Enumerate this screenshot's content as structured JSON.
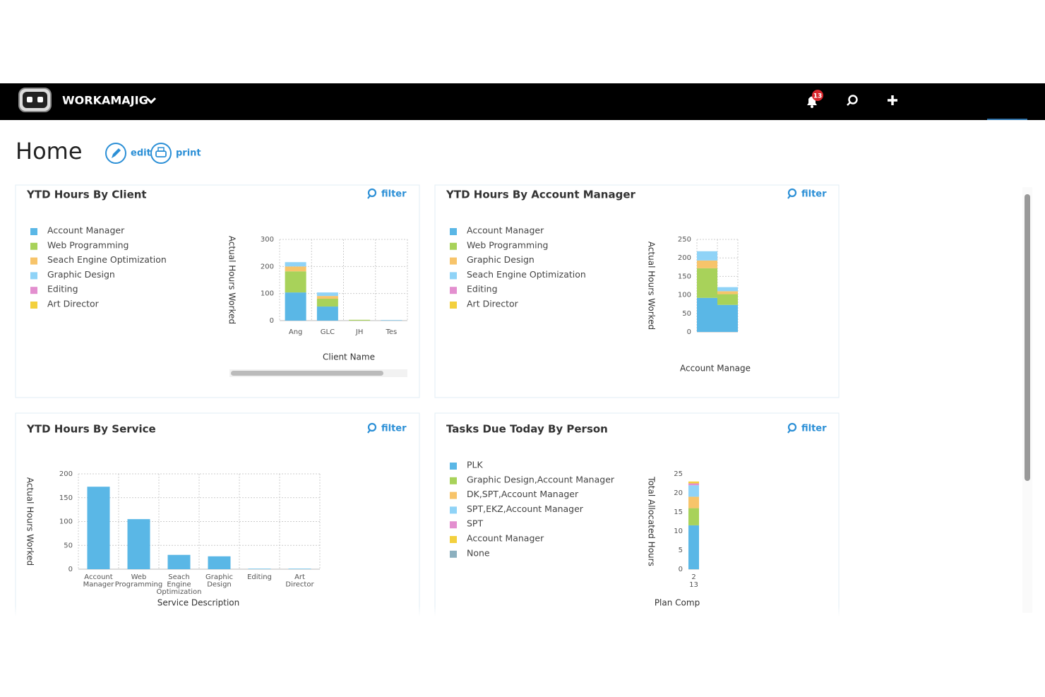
{
  "nav": {
    "brand": "WORKAMAJIG",
    "notifications": 13
  },
  "page": {
    "title": "Home",
    "actions": [
      "edit",
      "print"
    ]
  },
  "chart_data": [
    {
      "type": "bar",
      "stacked": true,
      "grid": true,
      "title": "YTD Hours By Client",
      "filter": "filter",
      "xlabel": "Client Name",
      "ylabel": "Actual Hours Worked",
      "categories": [
        "Ang",
        "GLC",
        "JH",
        "Tes"
      ],
      "series": [
        {
          "name": "Account Manager",
          "color": "#5ab7e6",
          "values": [
            104,
            52,
            0,
            1
          ]
        },
        {
          "name": "Web Programming",
          "color": "#a8d25a",
          "values": [
            78,
            29,
            3,
            0
          ]
        },
        {
          "name": "Seach Engine Optimization",
          "color": "#f7c46a",
          "values": [
            18,
            10,
            0,
            0
          ]
        },
        {
          "name": "Graphic Design",
          "color": "#8fd3f7",
          "values": [
            16,
            13,
            0,
            1
          ]
        },
        {
          "name": "Editing",
          "color": "#e38fcf",
          "values": [
            0,
            0,
            0,
            0
          ]
        },
        {
          "name": "Art Director",
          "color": "#f3d03e",
          "values": [
            0,
            0,
            0,
            0
          ]
        }
      ],
      "ylim": [
        0,
        300
      ],
      "yticks": [
        0,
        100,
        200,
        300
      ]
    },
    {
      "type": "bar",
      "stacked": true,
      "grid": true,
      "title": "YTD Hours By Account Manager",
      "filter": "filter",
      "xlabel": "Account Manage",
      "ylabel": "Actual Hours Worked",
      "categories": [
        null,
        null
      ],
      "series": [
        {
          "name": "Account Manager",
          "color": "#5ab7e6",
          "values": [
            92,
            73
          ]
        },
        {
          "name": "Web Programming",
          "color": "#a8d25a",
          "values": [
            80,
            29
          ]
        },
        {
          "name": "Graphic Design",
          "color": "#f7c46a",
          "values": [
            21,
            8
          ]
        },
        {
          "name": "Seach Engine Optimization",
          "color": "#8fd3f7",
          "values": [
            25,
            11
          ]
        },
        {
          "name": "Editing",
          "color": "#e38fcf",
          "values": [
            0,
            0
          ]
        },
        {
          "name": "Art Director",
          "color": "#f3d03e",
          "values": [
            0,
            0
          ]
        }
      ],
      "ylim": [
        0,
        250
      ],
      "yticks": [
        0,
        50,
        100,
        150,
        200,
        250
      ]
    },
    {
      "type": "bar",
      "grid": true,
      "title": "YTD Hours By Service",
      "filter": "filter",
      "xlabel": "Service Description",
      "ylabel": "Actual Hours Worked",
      "categories": [
        "Account Manager",
        "Web Programming",
        "Seach Engine Optimization",
        "Graphic Design",
        "Editing",
        "Art Director"
      ],
      "values": [
        173,
        105,
        30,
        27,
        1,
        1
      ],
      "color": "#5ab7e6",
      "ylim": [
        0,
        200
      ],
      "yticks": [
        0,
        50,
        100,
        150,
        200
      ]
    },
    {
      "type": "bar",
      "stacked": true,
      "grid": false,
      "title": "Tasks Due Today By Person",
      "filter": "filter",
      "xlabel": "Plan Comp",
      "ylabel": "Total Allocated Hours",
      "categories": [
        "2",
        "13"
      ],
      "series": [
        {
          "name": "PLK",
          "color": "#5ab7e6",
          "values": [
            11.5,
            null
          ]
        },
        {
          "name": "Graphic Design,Account Manager",
          "color": "#a8d25a",
          "values": [
            4.5,
            null
          ]
        },
        {
          "name": "DK,SPT,Account Manager",
          "color": "#f7c46a",
          "values": [
            3,
            null
          ]
        },
        {
          "name": "SPT,EKZ,Account Manager",
          "color": "#8fd3f7",
          "values": [
            3,
            null
          ]
        },
        {
          "name": "SPT",
          "color": "#e38fcf",
          "values": [
            0.5,
            null
          ]
        },
        {
          "name": "Account Manager",
          "color": "#f3d03e",
          "values": [
            0.5,
            null
          ]
        },
        {
          "name": "None",
          "color": "#8cb0bf",
          "values": [
            0,
            null
          ]
        }
      ],
      "ylim": [
        0,
        25
      ],
      "yticks": [
        0,
        5,
        10,
        15,
        20,
        25
      ]
    }
  ]
}
